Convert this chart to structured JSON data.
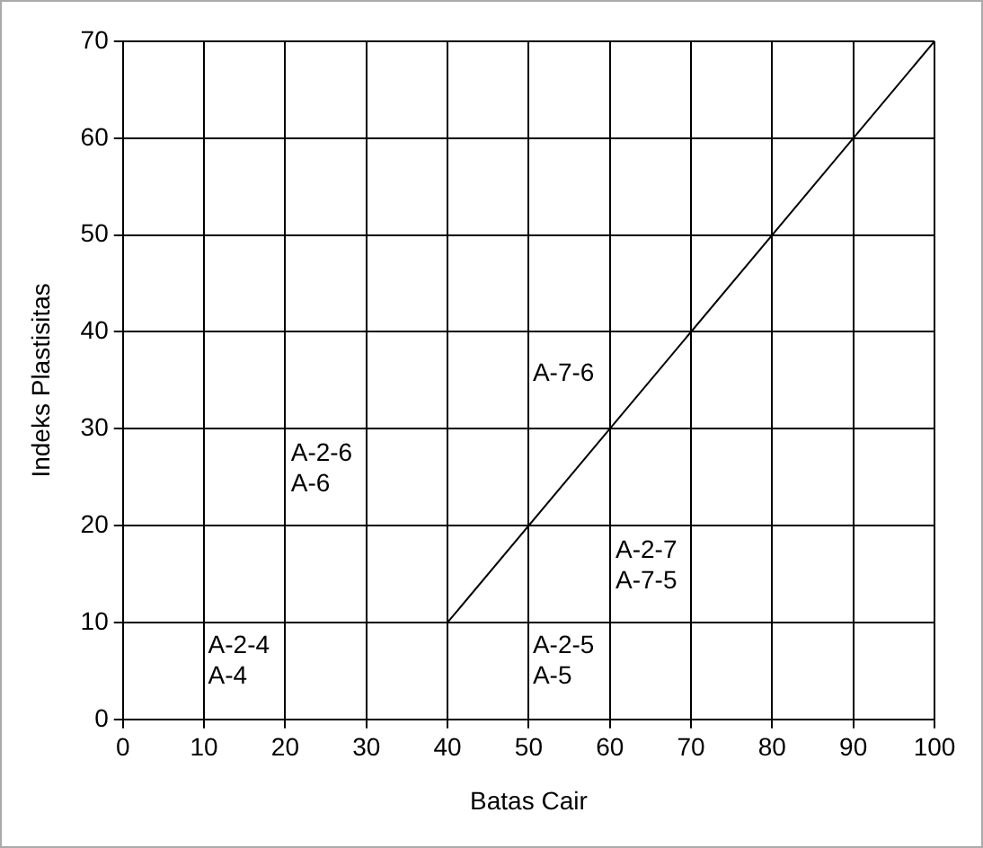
{
  "chart_data": {
    "type": "line",
    "xlabel": "Batas Cair",
    "ylabel": "Indeks Plastisitas",
    "x": [
      40,
      100
    ],
    "values": [
      10,
      70
    ],
    "color": "#000000",
    "marker": "none",
    "xlim": [
      0,
      100
    ],
    "xticks": [
      0,
      10,
      20,
      30,
      40,
      50,
      60,
      70,
      80,
      90,
      100
    ],
    "ylim": [
      0,
      70
    ],
    "yticks": [
      0,
      10,
      20,
      30,
      40,
      50,
      60,
      70
    ],
    "grid": true,
    "legend": false,
    "annotations": [
      "A-2-4\nA-4",
      "A-2-6\nA-6",
      "A-7-6",
      "A-2-7\nA-7-5",
      "A-2-5\nA-5"
    ]
  }
}
